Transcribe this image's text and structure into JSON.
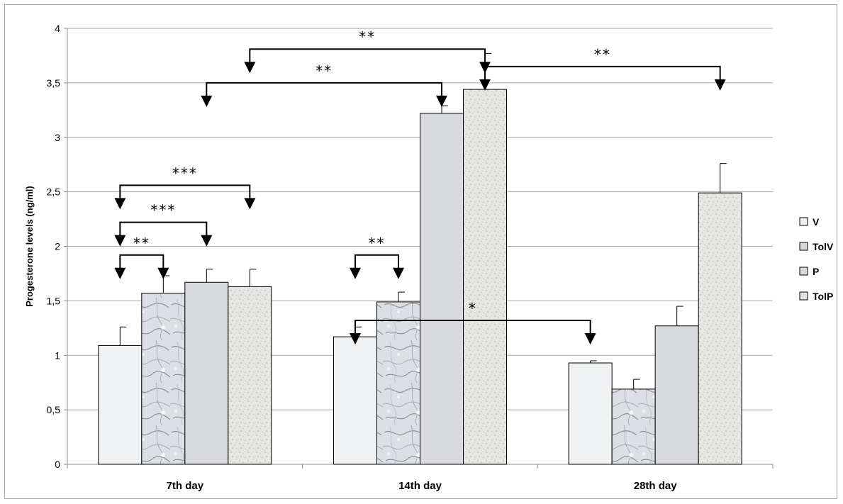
{
  "chart_data": {
    "type": "bar",
    "title": "",
    "xlabel": "",
    "ylabel": "Progesterone levels (ng/ml)",
    "ylim": [
      0,
      4
    ],
    "yticks": [
      "0",
      "0,5",
      "1",
      "1,5",
      "2",
      "2,5",
      "3",
      "3,5",
      "4"
    ],
    "grid": true,
    "legend_position": "right",
    "categories": [
      "7th day",
      "14th day",
      "28th day"
    ],
    "series": [
      {
        "name": "V",
        "values": [
          1.09,
          1.17,
          0.93
        ],
        "errors": [
          0.17,
          0.09,
          0.02
        ],
        "color": "#f0f1f3",
        "pattern": "plain"
      },
      {
        "name": "TolV",
        "values": [
          1.57,
          1.49,
          0.69
        ],
        "errors": [
          0.16,
          0.09,
          0.09
        ],
        "color": "#c9ccd3",
        "pattern": "marble"
      },
      {
        "name": "P",
        "values": [
          1.67,
          3.22,
          1.27
        ],
        "errors": [
          0.12,
          0.07,
          0.18
        ],
        "color": "#d9dadd",
        "pattern": "plain"
      },
      {
        "name": "TolP",
        "values": [
          1.63,
          3.44,
          2.49
        ],
        "errors": [
          0.16,
          0.33,
          0.27
        ],
        "color": "#e4e4e0",
        "pattern": "speckle"
      }
    ],
    "annotations": [
      {
        "label": "**",
        "from": [
          "7th day",
          "V"
        ],
        "to": [
          "7th day",
          "TolV"
        ]
      },
      {
        "label": "***",
        "from": [
          "7th day",
          "V"
        ],
        "to": [
          "7th day",
          "P"
        ]
      },
      {
        "label": "***",
        "from": [
          "7th day",
          "V"
        ],
        "to": [
          "7th day",
          "TolP"
        ]
      },
      {
        "label": "**",
        "from": [
          "14th day",
          "V"
        ],
        "to": [
          "14th day",
          "TolV"
        ]
      },
      {
        "label": "*",
        "from": [
          "14th day",
          "V"
        ],
        "to": [
          "28th day",
          "V"
        ]
      },
      {
        "label": "**",
        "from": [
          "7th day",
          "P"
        ],
        "to": [
          "14th day",
          "P"
        ]
      },
      {
        "label": "**",
        "from": [
          "7th day",
          "TolP"
        ],
        "to": [
          "14th day",
          "TolP"
        ]
      },
      {
        "label": "**",
        "from": [
          "14th day",
          "TolP"
        ],
        "to": [
          "28th day",
          "TolP"
        ]
      }
    ]
  }
}
